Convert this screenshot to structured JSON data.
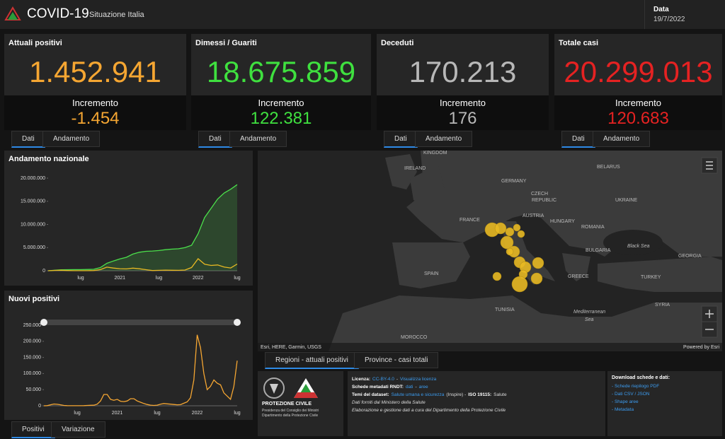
{
  "header": {
    "title": "COVID-19",
    "subtitle": "Situazione Italia",
    "date_label": "Data",
    "date": "19/7/2022"
  },
  "cards": [
    {
      "title": "Attuali positivi",
      "value": "1.452.941",
      "increment_label": "Incremento",
      "increment": "-1.454",
      "color": "#f5a632"
    },
    {
      "title": "Dimessi / Guariti",
      "value": "18.675.859",
      "increment_label": "Incremento",
      "increment": "122.381",
      "color": "#3fe03f"
    },
    {
      "title": "Deceduti",
      "value": "170.213",
      "increment_label": "Incremento",
      "increment": "176",
      "color": "#b8b8b8"
    },
    {
      "title": "Totale casi",
      "value": "20.299.013",
      "increment_label": "Incremento",
      "increment": "120.683",
      "color": "#e52222"
    }
  ],
  "card_tabs": [
    "Dati",
    "Andamento"
  ],
  "chart_data": [
    {
      "type": "line",
      "title": "Andamento nazionale",
      "categories": [
        null,
        null,
        null,
        null,
        null,
        "lug",
        null,
        null,
        null,
        null,
        null,
        "2021",
        null,
        null,
        null,
        null,
        null,
        "lug",
        null,
        null,
        null,
        null,
        null,
        "2022",
        null,
        null,
        null,
        null,
        null,
        "lug"
      ],
      "series": [
        {
          "color": "#4be04b",
          "area": true,
          "values": [
            2000,
            105000,
            205000,
            232000,
            240000,
            248000,
            268000,
            314000,
            680000,
            1600000,
            2100000,
            2550000,
            2900000,
            3600000,
            4000000,
            4200000,
            4260000,
            4360000,
            4550000,
            4670000,
            4750000,
            5000000,
            5500000,
            8000000,
            11500000,
            13500000,
            15500000,
            16800000,
            17600000,
            18600000
          ]
        },
        {
          "color": "#e8b923",
          "area": false,
          "values": [
            1000,
            75000,
            100000,
            50000,
            20000,
            12000,
            20000,
            45000,
            250000,
            780000,
            580000,
            450000,
            400000,
            560000,
            430000,
            230000,
            50000,
            90000,
            130000,
            100000,
            90000,
            160000,
            700000,
            2600000,
            1400000,
            1150000,
            1250000,
            800000,
            600000,
            1450000
          ]
        }
      ],
      "ylim": [
        0,
        20000000
      ],
      "yticks": [
        0,
        {
          "value": 5000000,
          "label": "5.000.000"
        },
        {
          "value": 10000000,
          "label": "10.000.000"
        },
        {
          "value": 15000000,
          "label": "15.000.000"
        },
        {
          "value": 20000000,
          "label": "20.000.000"
        }
      ]
    },
    {
      "type": "line",
      "title": "Nuovi positivi",
      "categories": [
        null,
        null,
        null,
        null,
        null,
        null,
        null,
        null,
        null,
        null,
        "lug",
        null,
        null,
        null,
        null,
        null,
        null,
        null,
        null,
        null,
        null,
        null,
        "2021",
        null,
        null,
        null,
        null,
        null,
        null,
        null,
        null,
        null,
        null,
        null,
        "lug",
        null,
        null,
        null,
        null,
        null,
        null,
        null,
        null,
        null,
        null,
        null,
        "2022",
        null,
        null,
        null,
        null,
        null,
        null,
        null,
        null,
        null,
        null,
        null,
        "lug"
      ],
      "series": [
        {
          "color": "#f5a632",
          "area": false,
          "values": [
            0,
            500,
            3000,
            5500,
            4500,
            3000,
            1000,
            500,
            300,
            200,
            200,
            250,
            400,
            1000,
            1500,
            1700,
            5000,
            15000,
            35000,
            35000,
            20000,
            17000,
            20000,
            14000,
            13000,
            15000,
            22000,
            22000,
            15000,
            11000,
            7000,
            4000,
            2000,
            1000,
            2000,
            5000,
            7000,
            6000,
            5000,
            4000,
            3000,
            3500,
            8000,
            12000,
            25000,
            80000,
            220000,
            180000,
            100000,
            50000,
            60000,
            80000,
            70000,
            65000,
            40000,
            30000,
            20000,
            60000,
            140000
          ]
        }
      ],
      "ylim": [
        0,
        250000
      ],
      "yticks": [
        0,
        {
          "value": 50000,
          "label": "50.000"
        },
        {
          "value": 100000,
          "label": "100.000"
        },
        {
          "value": 150000,
          "label": "150.000"
        },
        {
          "value": 200000,
          "label": "200.000"
        },
        {
          "value": 250000,
          "label": "250.000"
        }
      ]
    }
  ],
  "chart_tabs": [
    "Positivi",
    "Variazione"
  ],
  "map": {
    "labels": [
      "KINGDOM",
      "IRELAND",
      "GERMANY",
      "BELARUS",
      "CZECH",
      "REPUBLIC",
      "UKRAINE",
      "FRANCE",
      "AUSTRIA",
      "HUNGARY",
      "ROMANIA",
      "Black Sea",
      "BULGARIA",
      "GEORGIA",
      "SPAIN",
      "GREECE",
      "TURKEY",
      "TUNISIA",
      "Mediterranean",
      "Sea",
      "SYRIA",
      "MOROCCO"
    ],
    "attribution": "Esri, HERE, Garmin, USGS",
    "powered": "Powered by Esri",
    "tabs": [
      "Regioni - attuali positivi",
      "Province - casi totali"
    ]
  },
  "info": {
    "logo": [
      "PROTEZIONE CIVILE",
      "Presidenza del Consiglio dei Ministri",
      "Dipartimento della Protezione Civile"
    ],
    "lines": [
      [
        {
          "text": "Licenza:",
          "style": "bold"
        },
        {
          "text": "CC-BY-4.0",
          "style": "link"
        },
        {
          "text": "-",
          "style": "plain"
        },
        {
          "text": "Visualizza licenza",
          "style": "link"
        }
      ],
      [
        {
          "text": "Schede metadati RNDT:",
          "style": "bold"
        },
        {
          "text": "dati",
          "style": "link"
        },
        {
          "text": "-",
          "style": "plain"
        },
        {
          "text": "aree",
          "style": "link"
        }
      ],
      [
        {
          "text": "Temi del dataset:",
          "style": "bold"
        },
        {
          "text": "Salute umana e sicurezza",
          "style": "link"
        },
        {
          "text": "(Inspire) -",
          "style": "plain"
        },
        {
          "text": "ISO 19115:",
          "style": "bold"
        },
        {
          "text": "Salute",
          "style": "plain"
        }
      ],
      [
        {
          "text": "Dati forniti dal Ministero della Salute",
          "style": "italic"
        }
      ],
      [
        {
          "text": "Elaborazione e gestione dati a cura del Dipartimento della Protezione Civile",
          "style": "italic"
        }
      ]
    ],
    "download_title": "Download schede e dati:",
    "downloads": [
      "- Schede riepilogo PDF",
      "- Dati CSV / JSON",
      "- Shape aree",
      "- Metadata"
    ]
  }
}
